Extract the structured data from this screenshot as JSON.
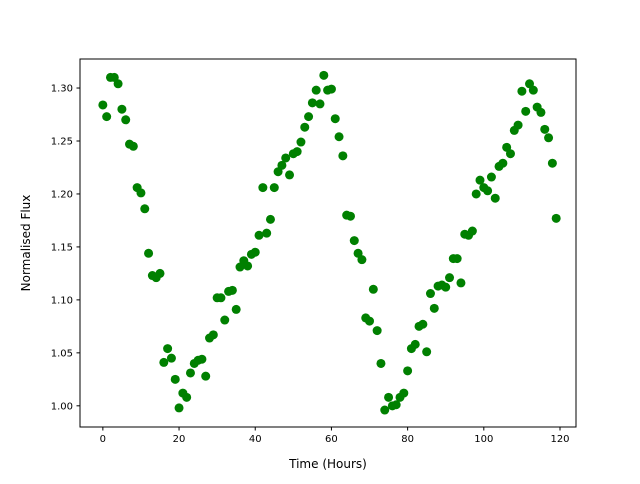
{
  "chart_data": {
    "type": "scatter",
    "title": "",
    "xlabel": "Time (Hours)",
    "ylabel": "Normalised Flux",
    "xlim": [
      -6,
      124.2
    ],
    "ylim": [
      0.98,
      1.3274
    ],
    "xticks": [
      0,
      20,
      40,
      60,
      80,
      100,
      120
    ],
    "yticks": [
      1.0,
      1.05,
      1.1,
      1.15,
      1.2,
      1.25,
      1.3
    ],
    "xtick_labels": [
      "0",
      "20",
      "40",
      "60",
      "80",
      "100",
      "120"
    ],
    "ytick_labels": [
      "1.00",
      "1.05",
      "1.10",
      "1.15",
      "1.20",
      "1.25",
      "1.30"
    ],
    "grid": false,
    "marker_color": "#008000",
    "x": [
      0,
      1,
      2,
      3,
      4,
      5,
      6,
      7,
      8,
      9,
      10,
      11,
      12,
      13,
      14,
      15,
      16,
      17,
      18,
      19,
      20,
      21,
      22,
      23,
      24,
      25,
      26,
      27,
      28,
      29,
      30,
      31,
      32,
      33,
      34,
      35,
      36,
      37,
      38,
      39,
      40,
      41,
      42,
      43,
      44,
      45,
      46,
      47,
      48,
      49,
      50,
      51,
      52,
      53,
      54,
      55,
      56,
      57,
      58,
      59,
      60,
      61,
      62,
      63,
      64,
      65,
      66,
      67,
      68,
      69,
      70,
      71,
      72,
      73,
      74,
      75,
      76,
      77,
      78,
      79,
      80,
      81,
      82,
      83,
      84,
      85,
      86,
      87,
      88,
      89,
      90,
      91,
      92,
      93,
      94,
      95,
      96,
      97,
      98,
      99,
      100,
      101,
      102,
      103,
      104,
      105,
      106,
      107,
      108,
      109,
      110,
      111,
      112,
      113,
      114,
      115,
      116,
      117,
      118,
      119
    ],
    "y": [
      1.284,
      1.273,
      1.31,
      1.31,
      1.304,
      1.28,
      1.27,
      1.247,
      1.245,
      1.206,
      1.201,
      1.186,
      1.144,
      1.123,
      1.121,
      1.125,
      1.041,
      1.054,
      1.045,
      1.025,
      0.998,
      1.012,
      1.008,
      1.031,
      1.04,
      1.043,
      1.044,
      1.028,
      1.064,
      1.067,
      1.102,
      1.102,
      1.081,
      1.108,
      1.109,
      1.091,
      1.131,
      1.137,
      1.132,
      1.143,
      1.145,
      1.161,
      1.206,
      1.163,
      1.176,
      1.206,
      1.221,
      1.227,
      1.234,
      1.218,
      1.238,
      1.24,
      1.249,
      1.263,
      1.273,
      1.286,
      1.298,
      1.285,
      1.312,
      1.298,
      1.299,
      1.271,
      1.254,
      1.236,
      1.18,
      1.179,
      1.156,
      1.144,
      1.138,
      1.083,
      1.08,
      1.11,
      1.071,
      1.04,
      0.996,
      1.008,
      1.0,
      1.001,
      1.008,
      1.012,
      1.033,
      1.054,
      1.058,
      1.075,
      1.077,
      1.051,
      1.106,
      1.092,
      1.113,
      1.114,
      1.112,
      1.121,
      1.139,
      1.139,
      1.116,
      1.162,
      1.161,
      1.165,
      1.2,
      1.213,
      1.206,
      1.203,
      1.216,
      1.196,
      1.226,
      1.229,
      1.244,
      1.238,
      1.26,
      1.265,
      1.297,
      1.278,
      1.304,
      1.298,
      1.282,
      1.277,
      1.261,
      1.253,
      1.229,
      1.177
    ]
  }
}
